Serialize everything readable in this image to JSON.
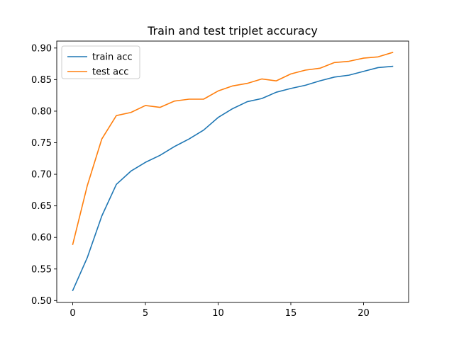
{
  "chart_data": {
    "type": "line",
    "title": "Train and test triplet accuracy",
    "xlabel": "",
    "ylabel": "",
    "xlim": [
      -1.1,
      23.1
    ],
    "ylim": [
      0.497,
      0.911
    ],
    "xticks": [
      0,
      5,
      10,
      15,
      20
    ],
    "yticks": [
      0.5,
      0.55,
      0.6,
      0.65,
      0.7,
      0.75,
      0.8,
      0.85,
      0.9
    ],
    "grid": false,
    "legend_position": "top-left",
    "x": [
      0,
      1,
      2,
      3,
      4,
      5,
      6,
      7,
      8,
      9,
      10,
      11,
      12,
      13,
      14,
      15,
      16,
      17,
      18,
      19,
      20,
      21,
      22
    ],
    "series": [
      {
        "name": "train acc",
        "color": "#1f77b4",
        "values": [
          0.516,
          0.568,
          0.634,
          0.684,
          0.705,
          0.719,
          0.73,
          0.744,
          0.756,
          0.77,
          0.79,
          0.804,
          0.815,
          0.82,
          0.83,
          0.836,
          0.841,
          0.848,
          0.854,
          0.857,
          0.863,
          0.869,
          0.871
        ]
      },
      {
        "name": "test acc",
        "color": "#ff7f0e",
        "values": [
          0.589,
          0.682,
          0.756,
          0.793,
          0.798,
          0.809,
          0.806,
          0.816,
          0.819,
          0.819,
          0.832,
          0.84,
          0.844,
          0.851,
          0.848,
          0.859,
          0.865,
          0.868,
          0.877,
          0.879,
          0.884,
          0.886,
          0.893
        ]
      }
    ]
  }
}
